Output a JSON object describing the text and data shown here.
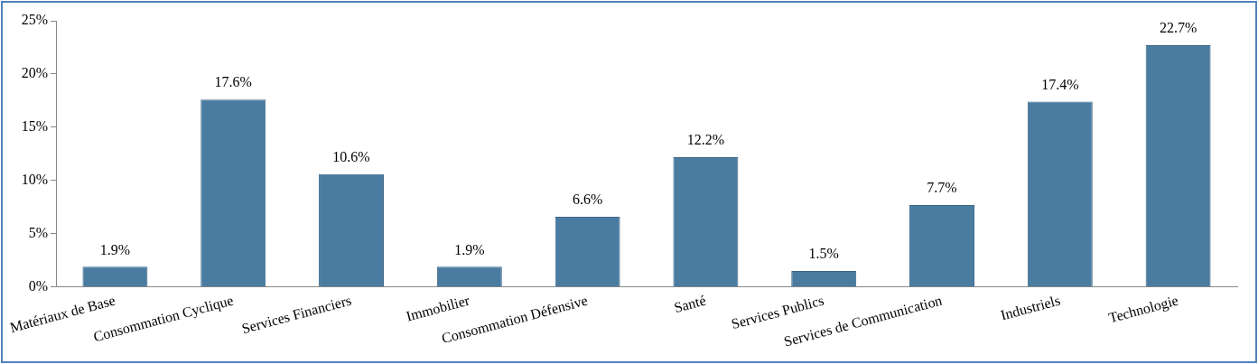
{
  "chart_data": {
    "type": "bar",
    "categories": [
      "Matériaux de Base",
      "Consommation Cyclique",
      "Services Financiers",
      "Immobilier",
      "Consommation Défensive",
      "Santé",
      "Services Publics",
      "Services de Communication",
      "Industriels",
      "Technologie"
    ],
    "values": [
      1.9,
      17.6,
      10.6,
      1.9,
      6.6,
      12.2,
      1.5,
      7.7,
      17.4,
      22.7
    ],
    "value_labels": [
      "1.9%",
      "17.6%",
      "10.6%",
      "1.9%",
      "6.6%",
      "12.2%",
      "1.5%",
      "7.7%",
      "17.4%",
      "22.7%"
    ],
    "color": "#4a7ba0",
    "ylim": [
      0,
      25
    ],
    "yticks": [
      {
        "value": 0,
        "label": "0%"
      },
      {
        "value": 5,
        "label": "5%"
      },
      {
        "value": 10,
        "label": "10%"
      },
      {
        "value": 15,
        "label": "15%"
      },
      {
        "value": 20,
        "label": "20%"
      },
      {
        "value": 25,
        "label": "25%"
      }
    ],
    "grid": false
  }
}
